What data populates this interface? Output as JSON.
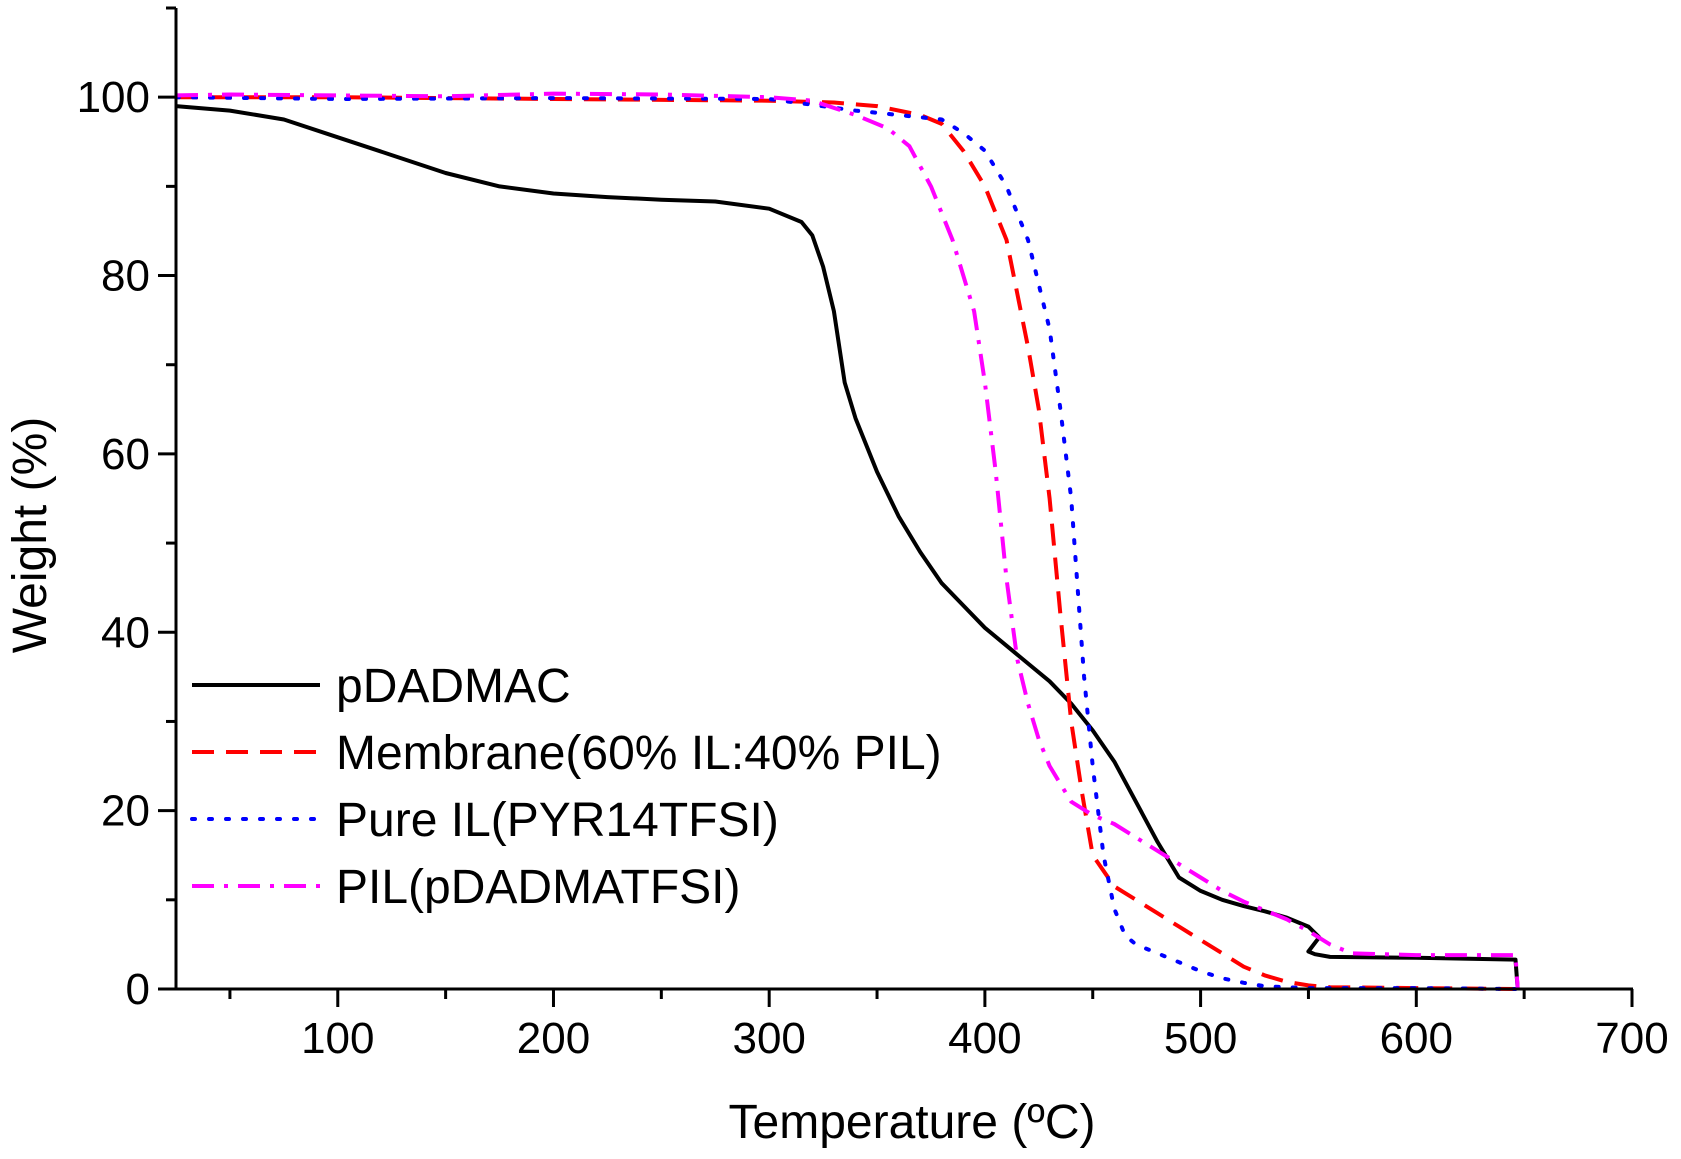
{
  "chart_data": {
    "type": "line",
    "title": "",
    "xlabel": "Temperature (ºC)",
    "ylabel": "Weight (%)",
    "xlim": [
      25,
      700
    ],
    "ylim": [
      0,
      110
    ],
    "x_ticks": [
      100,
      200,
      300,
      400,
      500,
      600,
      700
    ],
    "x_tick_labels": [
      "100",
      "200",
      "300",
      "400",
      "500",
      "600",
      "700"
    ],
    "y_ticks": [
      0,
      20,
      40,
      60,
      80,
      100
    ],
    "y_tick_labels": [
      "0",
      "20",
      "40",
      "60",
      "80",
      "100"
    ],
    "grid": false,
    "legend_position": "left",
    "series": [
      {
        "name": "pDADMAC",
        "color": "#000000",
        "dash": "solid",
        "points": [
          [
            25,
            99
          ],
          [
            50,
            98.5
          ],
          [
            75,
            97.5
          ],
          [
            100,
            95.5
          ],
          [
            125,
            93.5
          ],
          [
            150,
            91.5
          ],
          [
            175,
            90
          ],
          [
            200,
            89.2
          ],
          [
            225,
            88.8
          ],
          [
            250,
            88.5
          ],
          [
            275,
            88.3
          ],
          [
            300,
            87.5
          ],
          [
            315,
            86
          ],
          [
            320,
            84.5
          ],
          [
            325,
            81
          ],
          [
            330,
            76
          ],
          [
            335,
            68
          ],
          [
            340,
            64
          ],
          [
            350,
            58
          ],
          [
            360,
            53
          ],
          [
            370,
            49
          ],
          [
            380,
            45.5
          ],
          [
            390,
            43
          ],
          [
            400,
            40.5
          ],
          [
            410,
            38.5
          ],
          [
            420,
            36.5
          ],
          [
            430,
            34.5
          ],
          [
            440,
            32
          ],
          [
            450,
            29
          ],
          [
            460,
            25.5
          ],
          [
            470,
            21
          ],
          [
            480,
            16.5
          ],
          [
            490,
            12.5
          ],
          [
            500,
            11
          ],
          [
            510,
            10
          ],
          [
            520,
            9.3
          ],
          [
            530,
            8.7
          ],
          [
            540,
            8
          ],
          [
            550,
            7
          ],
          [
            555,
            5.8
          ],
          [
            550,
            4.2
          ],
          [
            553,
            3.9
          ],
          [
            560,
            3.6
          ],
          [
            600,
            3.5
          ],
          [
            646,
            3.3
          ],
          [
            647,
            0
          ]
        ]
      },
      {
        "name": "Membrane(60% IL:40% PIL)",
        "color": "#ff0000",
        "dash": "dash",
        "points": [
          [
            25,
            100
          ],
          [
            100,
            100
          ],
          [
            200,
            99.8
          ],
          [
            300,
            99.6
          ],
          [
            330,
            99.4
          ],
          [
            350,
            99
          ],
          [
            370,
            98
          ],
          [
            380,
            97
          ],
          [
            390,
            94
          ],
          [
            400,
            90
          ],
          [
            410,
            84
          ],
          [
            420,
            72
          ],
          [
            425,
            65
          ],
          [
            430,
            55
          ],
          [
            435,
            42
          ],
          [
            440,
            30
          ],
          [
            445,
            22
          ],
          [
            450,
            15
          ],
          [
            460,
            11.5
          ],
          [
            470,
            10
          ],
          [
            480,
            8.5
          ],
          [
            490,
            7
          ],
          [
            500,
            5.5
          ],
          [
            510,
            4
          ],
          [
            520,
            2.5
          ],
          [
            530,
            1.5
          ],
          [
            540,
            0.8
          ],
          [
            550,
            0.4
          ],
          [
            560,
            0.2
          ],
          [
            600,
            0.1
          ],
          [
            646,
            0
          ]
        ]
      },
      {
        "name": "Pure IL(PYR14TFSI)",
        "color": "#0000ff",
        "dash": "dot",
        "points": [
          [
            25,
            100
          ],
          [
            100,
            99.8
          ],
          [
            200,
            99.9
          ],
          [
            300,
            99.8
          ],
          [
            340,
            98.5
          ],
          [
            360,
            98
          ],
          [
            380,
            97.5
          ],
          [
            390,
            96
          ],
          [
            400,
            94
          ],
          [
            410,
            90
          ],
          [
            420,
            84
          ],
          [
            430,
            74
          ],
          [
            435,
            65
          ],
          [
            440,
            55
          ],
          [
            443,
            45
          ],
          [
            446,
            35
          ],
          [
            450,
            25
          ],
          [
            455,
            15
          ],
          [
            460,
            9
          ],
          [
            465,
            6
          ],
          [
            470,
            5
          ],
          [
            480,
            4
          ],
          [
            490,
            3
          ],
          [
            500,
            2
          ],
          [
            510,
            1.2
          ],
          [
            520,
            0.7
          ],
          [
            530,
            0.3
          ],
          [
            550,
            0.1
          ],
          [
            600,
            0.1
          ],
          [
            646,
            0
          ]
        ]
      },
      {
        "name": "PIL(pDADMATFSI)",
        "color": "#ff00ff",
        "dash": "dashdot",
        "points": [
          [
            25,
            100.2
          ],
          [
            50,
            100.3
          ],
          [
            100,
            100.2
          ],
          [
            150,
            100.1
          ],
          [
            200,
            100.4
          ],
          [
            250,
            100.3
          ],
          [
            300,
            100
          ],
          [
            320,
            99.6
          ],
          [
            340,
            98
          ],
          [
            355,
            96.5
          ],
          [
            365,
            94.5
          ],
          [
            375,
            90
          ],
          [
            385,
            84
          ],
          [
            395,
            76
          ],
          [
            400,
            68
          ],
          [
            405,
            58
          ],
          [
            410,
            46
          ],
          [
            415,
            37
          ],
          [
            420,
            32
          ],
          [
            425,
            28
          ],
          [
            430,
            25
          ],
          [
            440,
            21
          ],
          [
            450,
            19.5
          ],
          [
            460,
            18.5
          ],
          [
            470,
            17
          ],
          [
            480,
            15.5
          ],
          [
            490,
            14
          ],
          [
            500,
            12.5
          ],
          [
            510,
            11
          ],
          [
            520,
            9.8
          ],
          [
            530,
            8.8
          ],
          [
            540,
            7.8
          ],
          [
            550,
            6.5
          ],
          [
            560,
            5
          ],
          [
            570,
            4
          ],
          [
            600,
            3.8
          ],
          [
            646,
            3.8
          ],
          [
            647,
            0
          ]
        ]
      }
    ]
  }
}
